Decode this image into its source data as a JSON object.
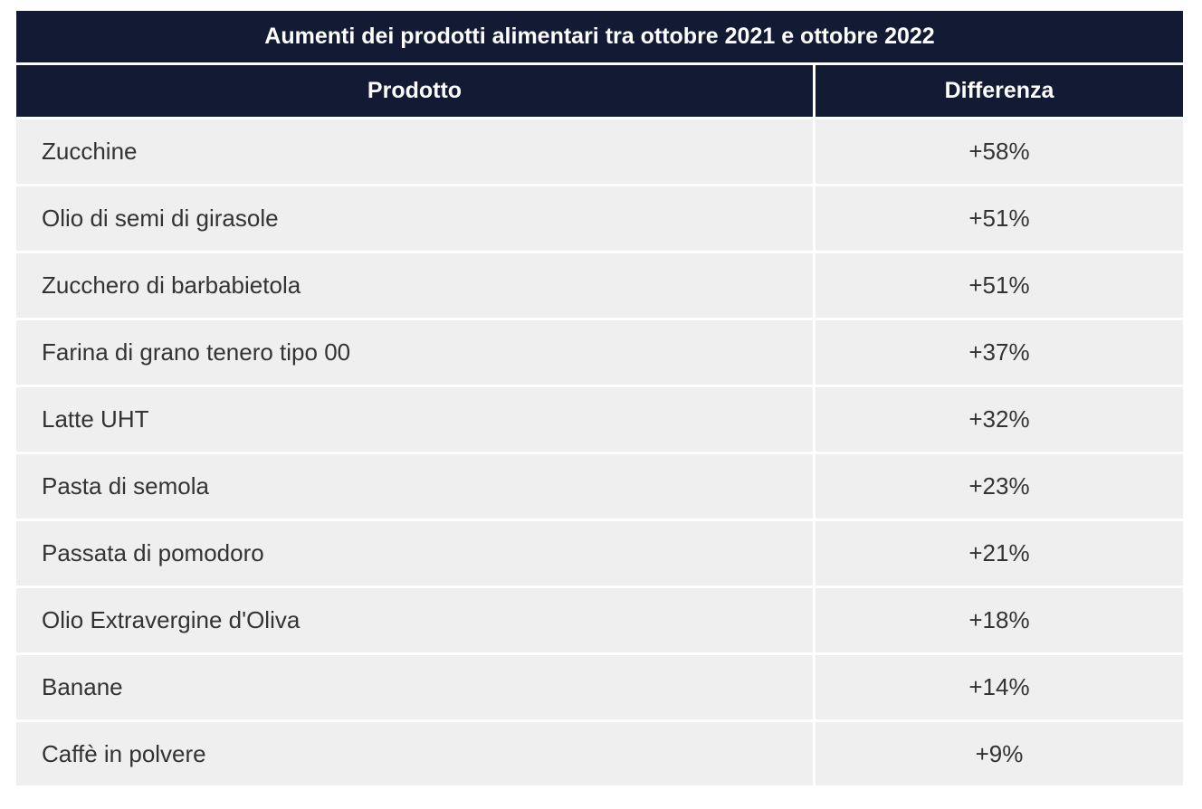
{
  "table": {
    "title": "Aumenti dei prodotti alimentari tra ottobre 2021 e ottobre 2022",
    "headers": [
      "Prodotto",
      "Differenza"
    ],
    "rows": [
      {
        "product": "Zucchine",
        "difference": "+58%"
      },
      {
        "product": "Olio di semi di girasole",
        "difference": "+51%"
      },
      {
        "product": "Zucchero di barbabietola",
        "difference": "+51%"
      },
      {
        "product": "Farina di grano tenero tipo 00",
        "difference": "+37%"
      },
      {
        "product": "Latte UHT",
        "difference": "+32%"
      },
      {
        "product": "Pasta di semola",
        "difference": "+23%"
      },
      {
        "product": "Passata di pomodoro",
        "difference": "+21%"
      },
      {
        "product": "Olio Extravergine d'Oliva",
        "difference": "+18%"
      },
      {
        "product": "Banane",
        "difference": "+14%"
      },
      {
        "product": "Caffè in polvere",
        "difference": "+9%"
      }
    ]
  },
  "colors": {
    "header_background": "#131a33",
    "header_text": "#ffffff",
    "row_background": "#efefef",
    "row_text": "#333333"
  }
}
